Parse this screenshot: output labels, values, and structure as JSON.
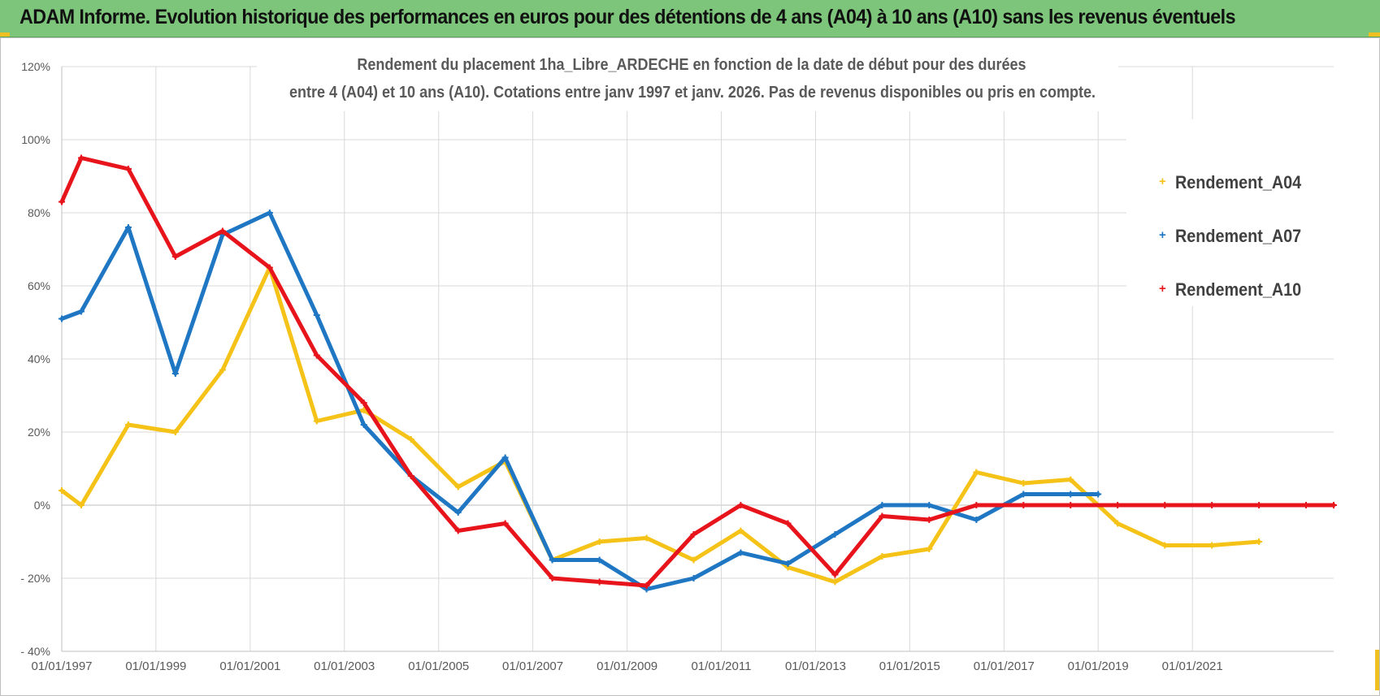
{
  "banner": {
    "title": "ADAM Informe. Evolution historique des performances en euros pour des détentions de 4 ans (A04) à 10 ans (A10) sans les revenus éventuels"
  },
  "colors": {
    "banner_bg": "#7cc57a",
    "Rendement_A04": "#f5c218",
    "Rendement_A07": "#1f77c4",
    "Rendement_A10": "#e8141c"
  },
  "chart_data": {
    "type": "line",
    "title": "Rendement du placement 1ha_Libre_ARDECHE en fonction de la date de début pour des durées",
    "subtitle": "entre 4 (A04) et 10 ans (A10).  Cotations entre janv 1997 et janv. 2026. Pas de revenus disponibles ou pris en compte.",
    "xlabel": "",
    "ylabel": "",
    "x_axis": {
      "type": "date",
      "range": [
        "1997-01-01",
        "2024-01-01"
      ],
      "tick_labels": [
        "01/01/1997",
        "01/01/1999",
        "01/01/2001",
        "01/01/2003",
        "01/01/2005",
        "01/01/2007",
        "01/01/2009",
        "01/01/2011",
        "01/01/2013",
        "01/01/2015",
        "01/01/2017",
        "01/01/2019",
        "01/01/2021"
      ],
      "tick_dates": [
        "1997-01-01",
        "1999-01-01",
        "2001-01-01",
        "2003-01-01",
        "2005-01-01",
        "2007-01-01",
        "2009-01-01",
        "2011-01-01",
        "2013-01-01",
        "2015-01-01",
        "2017-01-01",
        "2019-01-01",
        "2021-01-01"
      ]
    },
    "y_axis": {
      "ylim": [
        -40,
        120
      ],
      "unit": "%",
      "tick_values": [
        -40,
        -20,
        0,
        20,
        40,
        60,
        80,
        100,
        120
      ],
      "tick_labels": [
        "- 40%",
        "- 20%",
        "0%",
        "20%",
        "40%",
        "60%",
        "80%",
        "100%",
        "120%"
      ]
    },
    "grid": true,
    "legend_position": "top-right",
    "series": [
      {
        "name": "Rendement_A04",
        "points": [
          [
            "1997-01-01",
            4
          ],
          [
            "1997-06-01",
            0
          ],
          [
            "1998-06-01",
            22
          ],
          [
            "1999-06-01",
            20
          ],
          [
            "2000-06-01",
            37
          ],
          [
            "2001-06-01",
            65
          ],
          [
            "2002-06-01",
            23
          ],
          [
            "2003-06-01",
            26
          ],
          [
            "2004-06-01",
            18
          ],
          [
            "2005-06-01",
            5
          ],
          [
            "2006-06-01",
            12
          ],
          [
            "2007-06-01",
            -15
          ],
          [
            "2008-06-01",
            -10
          ],
          [
            "2009-06-01",
            -9
          ],
          [
            "2010-06-01",
            -15
          ],
          [
            "2011-06-01",
            -7
          ],
          [
            "2012-06-01",
            -17
          ],
          [
            "2013-06-01",
            -21
          ],
          [
            "2014-06-01",
            -14
          ],
          [
            "2015-06-01",
            -12
          ],
          [
            "2016-06-01",
            9
          ],
          [
            "2017-06-01",
            6
          ],
          [
            "2018-06-01",
            7
          ],
          [
            "2019-06-01",
            -5
          ],
          [
            "2020-06-01",
            -11
          ],
          [
            "2021-06-01",
            -11
          ],
          [
            "2022-06-01",
            -10
          ]
        ]
      },
      {
        "name": "Rendement_A07",
        "points": [
          [
            "1997-01-01",
            51
          ],
          [
            "1997-06-01",
            53
          ],
          [
            "1998-06-01",
            76
          ],
          [
            "1999-06-01",
            36
          ],
          [
            "2000-06-01",
            74
          ],
          [
            "2001-06-01",
            80
          ],
          [
            "2002-06-01",
            52
          ],
          [
            "2003-06-01",
            22
          ],
          [
            "2004-06-01",
            8
          ],
          [
            "2005-06-01",
            -2
          ],
          [
            "2006-06-01",
            13
          ],
          [
            "2007-06-01",
            -15
          ],
          [
            "2008-06-01",
            -15
          ],
          [
            "2009-06-01",
            -23
          ],
          [
            "2010-06-01",
            -20
          ],
          [
            "2011-06-01",
            -13
          ],
          [
            "2012-06-01",
            -16
          ],
          [
            "2013-06-01",
            -8
          ],
          [
            "2014-06-01",
            0
          ],
          [
            "2015-06-01",
            0
          ],
          [
            "2016-06-01",
            -4
          ],
          [
            "2017-06-01",
            3
          ],
          [
            "2018-06-01",
            3
          ],
          [
            "2019-01-01",
            3
          ]
        ]
      },
      {
        "name": "Rendement_A10",
        "points": [
          [
            "1997-01-01",
            83
          ],
          [
            "1997-06-01",
            95
          ],
          [
            "1998-06-01",
            92
          ],
          [
            "1999-06-01",
            68
          ],
          [
            "2000-06-01",
            75
          ],
          [
            "2001-06-01",
            65
          ],
          [
            "2002-06-01",
            41
          ],
          [
            "2003-06-01",
            28
          ],
          [
            "2004-06-01",
            8
          ],
          [
            "2005-06-01",
            -7
          ],
          [
            "2006-06-01",
            -5
          ],
          [
            "2007-06-01",
            -20
          ],
          [
            "2008-06-01",
            -21
          ],
          [
            "2009-06-01",
            -22
          ],
          [
            "2010-06-01",
            -8
          ],
          [
            "2011-06-01",
            0
          ],
          [
            "2012-06-01",
            -5
          ],
          [
            "2013-06-01",
            -19
          ],
          [
            "2014-06-01",
            -3
          ],
          [
            "2015-06-01",
            -4
          ],
          [
            "2016-06-01",
            0
          ],
          [
            "2017-06-01",
            0
          ],
          [
            "2018-06-01",
            0
          ],
          [
            "2019-06-01",
            0
          ],
          [
            "2020-06-01",
            0
          ],
          [
            "2021-06-01",
            0
          ],
          [
            "2022-06-01",
            0
          ],
          [
            "2023-06-01",
            0
          ],
          [
            "2024-01-01",
            0
          ]
        ]
      }
    ]
  }
}
